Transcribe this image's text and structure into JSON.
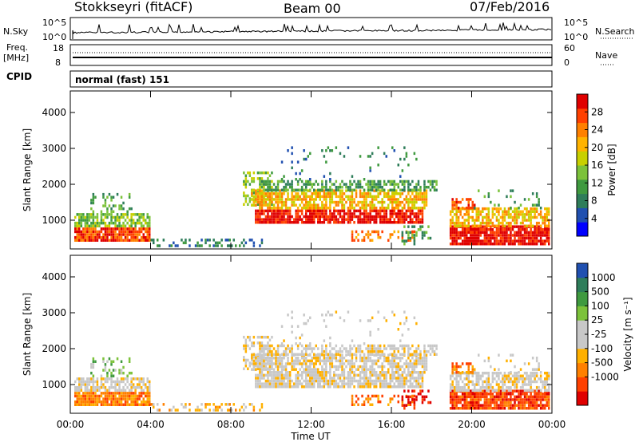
{
  "header": {
    "station": "Stokkseyri (fitACF)",
    "beam": "Beam 00",
    "date": "07/Feb/2016"
  },
  "strips": {
    "nsky_label": "N.Sky",
    "nsky_ticks": [
      "10^5",
      "10^0"
    ],
    "nsearch_label": "N.Search",
    "freq_label": "Freq.",
    "freq_unit": "[MHz]",
    "freq_ticks": [
      "18",
      "8"
    ],
    "nave_ticks": [
      "60",
      "0"
    ],
    "nave_label": "Nave",
    "cpid_label": "CPID",
    "cpid_value": "normal (fast) 151"
  },
  "colors": {
    "power": [
      "#0000ff",
      "#2050b0",
      "#2e7d5a",
      "#3f9a3f",
      "#7cc23a",
      "#c8d000",
      "#ffb300",
      "#ff8000",
      "#ff4000",
      "#e00000"
    ],
    "velocity": [
      "#e00000",
      "#ff4000",
      "#ff8000",
      "#ffb000",
      "#c8c8c8",
      "#c8c8c8",
      "#7cc23a",
      "#3f9a3f",
      "#2e7d5a",
      "#2050b0"
    ]
  },
  "chart_data": [
    {
      "type": "heatmap",
      "title": "",
      "xlabel": "",
      "ylabel": "Slant Range [km]",
      "xlim": [
        "00:00",
        "00:00"
      ],
      "ylim": [
        200,
        4600
      ],
      "yticks": [
        "1000",
        "2000",
        "3000",
        "4000"
      ],
      "colorbar": {
        "label": "Power [dB]",
        "range": [
          0,
          32
        ],
        "ticks": [
          "4",
          "8",
          "12",
          "16",
          "20",
          "24",
          "28"
        ]
      }
    },
    {
      "type": "heatmap",
      "title": "",
      "xlabel": "Time UT",
      "ylabel": "Slant Range [km]",
      "xticks": [
        "00:00",
        "04:00",
        "08:00",
        "12:00",
        "16:00",
        "20:00",
        "00:00"
      ],
      "xlim": [
        "00:00",
        "00:00"
      ],
      "ylim": [
        200,
        4600
      ],
      "yticks": [
        "1000",
        "2000",
        "3000",
        "4000"
      ],
      "colorbar": {
        "label": "Velocity [m s⁻¹]",
        "ticks": [
          "1000",
          "500",
          "100",
          "25",
          "-25",
          "-100",
          "-500",
          "-1000"
        ]
      }
    }
  ]
}
